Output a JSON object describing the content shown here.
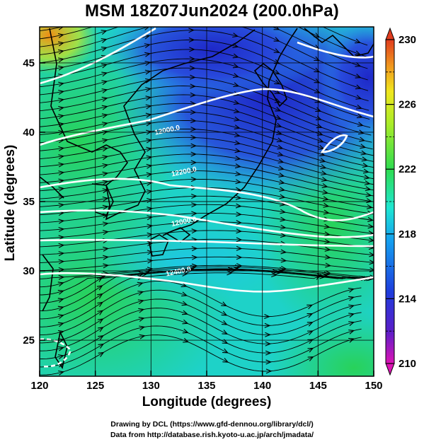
{
  "title": "MSM 18Z07Jun2024 (200.0hPa)",
  "footer": {
    "line1": "Drawing by DCL (https://www.gfd-dennou.org/library/dcl/)",
    "line2": "Data from http://database.rish.kyoto-u.ac.jp/arch/jmadata/"
  },
  "chart_data": {
    "type": "heatmap",
    "xlabel": "Longitude (degrees)",
    "ylabel": "Latitude  (degrees)",
    "xlim": [
      120,
      150
    ],
    "ylim": [
      22.4,
      47.6
    ],
    "x_ticks": [
      120,
      125,
      130,
      135,
      140,
      145,
      150
    ],
    "y_ticks": [
      25,
      30,
      35,
      40,
      45
    ],
    "colorbar": {
      "min": 210,
      "max": 230,
      "tick_labels": [
        230,
        226,
        222,
        218,
        214,
        210
      ]
    },
    "contours": [
      {
        "label": "12000.0",
        "lon": 131.5,
        "lat": 40.0
      },
      {
        "label": "12200.0",
        "lon": 133.0,
        "lat": 37.0
      },
      {
        "label": "12000.0",
        "lon": 133.0,
        "lat": 33.4
      },
      {
        "label": "12400.0",
        "lon": 132.5,
        "lat": 29.8
      }
    ],
    "colors": {
      "warm": "#f07a10",
      "mid": "#2ee06e",
      "cool": "#1434d8",
      "low": "#dc14b4"
    },
    "overlays": [
      "wind streamlines",
      "geopotential height contours",
      "coastlines"
    ]
  }
}
